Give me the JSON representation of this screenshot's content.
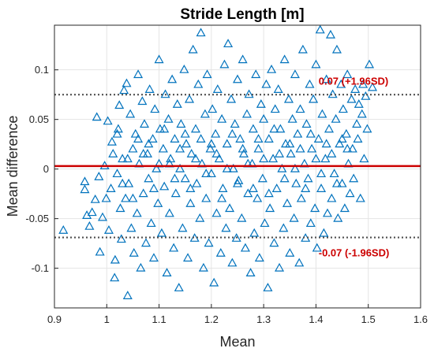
{
  "chart_data": {
    "type": "scatter",
    "title": "Stride Length [m]",
    "xlabel": "Mean",
    "ylabel": "Mean difference",
    "xlim": [
      0.9,
      1.6
    ],
    "ylim": [
      -0.14,
      0.145
    ],
    "xticks": [
      0.9,
      1.0,
      1.1,
      1.2,
      1.3,
      1.4,
      1.5,
      1.6
    ],
    "xtick_labels": [
      "0.9",
      "1",
      "1.1",
      "1.2",
      "1.3",
      "1.4",
      "1.5",
      "1.6"
    ],
    "yticks": [
      -0.1,
      -0.05,
      0,
      0.05,
      0.1
    ],
    "ytick_labels": [
      "-0.1",
      "-0.05",
      "0",
      "0.05",
      "0.1"
    ],
    "grid": true,
    "marker": "triangle",
    "marker_color": "#0072BD",
    "mean_line": {
      "y": 0.003,
      "color": "#CC0000"
    },
    "loa_lines": [
      {
        "y": 0.075,
        "color": "#505050",
        "style": "dotted"
      },
      {
        "y": -0.069,
        "color": "#505050",
        "style": "dotted"
      }
    ],
    "annotations": [
      {
        "text": "0.07 (+1.96SD)",
        "x": 1.405,
        "y": 0.085,
        "color": "#CC0000"
      },
      {
        "text": "-0.07 (-1.96SD)",
        "x": 1.405,
        "y": -0.088,
        "color": "#CC0000"
      }
    ],
    "series": [
      {
        "points": [
          [
            0.917,
            -0.062
          ],
          [
            0.958,
            -0.021
          ],
          [
            0.958,
            -0.013
          ],
          [
            0.962,
            -0.047
          ],
          [
            0.967,
            -0.058
          ],
          [
            0.972,
            -0.044
          ],
          [
            0.978,
            -0.031
          ],
          [
            0.981,
            0.052
          ],
          [
            0.985,
            -0.008
          ],
          [
            0.987,
            -0.084
          ],
          [
            0.992,
            -0.049
          ],
          [
            0.996,
            0.003
          ],
          [
            0.999,
            -0.03
          ],
          [
            1.002,
            0.048
          ],
          [
            1.004,
            -0.062
          ],
          [
            1.008,
            -0.02
          ],
          [
            1.01,
            0.027
          ],
          [
            1.012,
            0.015
          ],
          [
            1.015,
            -0.11
          ],
          [
            1.016,
            -0.092
          ],
          [
            1.02,
            -0.005
          ],
          [
            1.022,
            0.04
          ],
          [
            1.024,
            0.064
          ],
          [
            1.026,
            -0.04
          ],
          [
            1.028,
            -0.071
          ],
          [
            1.03,
            0.01
          ],
          [
            1.033,
            0.079
          ],
          [
            1.036,
            -0.03
          ],
          [
            1.038,
            0.086
          ],
          [
            1.04,
            -0.128
          ],
          [
            1.042,
            -0.015
          ],
          [
            1.045,
            0.055
          ],
          [
            1.047,
            -0.06
          ],
          [
            1.05,
            0.02
          ],
          [
            1.052,
            -0.085
          ],
          [
            1.055,
            0.035
          ],
          [
            1.058,
            -0.045
          ],
          [
            1.06,
            0.095
          ],
          [
            1.062,
            0.005
          ],
          [
            1.065,
            -0.1
          ],
          [
            1.068,
            0.068
          ],
          [
            1.07,
            -0.025
          ],
          [
            1.072,
            0.045
          ],
          [
            1.075,
            -0.075
          ],
          [
            1.078,
            0.015
          ],
          [
            1.08,
            -0.01
          ],
          [
            1.082,
            0.08
          ],
          [
            1.085,
            -0.055
          ],
          [
            1.088,
            0.03
          ],
          [
            1.09,
            -0.09
          ],
          [
            1.092,
            0.06
          ],
          [
            1.095,
            0.0
          ],
          [
            1.098,
            -0.035
          ],
          [
            1.1,
            0.11
          ],
          [
            1.102,
            0.04
          ],
          [
            1.105,
            -0.065
          ],
          [
            1.108,
            0.02
          ],
          [
            1.11,
            -0.018
          ],
          [
            1.112,
            0.075
          ],
          [
            1.115,
            -0.105
          ],
          [
            1.118,
            0.05
          ],
          [
            1.12,
            -0.045
          ],
          [
            1.122,
            0.01
          ],
          [
            1.125,
            0.09
          ],
          [
            1.128,
            -0.08
          ],
          [
            1.13,
            0.03
          ],
          [
            1.132,
            -0.025
          ],
          [
            1.135,
            0.065
          ],
          [
            1.138,
            -0.12
          ],
          [
            1.14,
            0.0
          ],
          [
            1.142,
            0.045
          ],
          [
            1.145,
            -0.06
          ],
          [
            1.148,
            0.1
          ],
          [
            1.15,
            -0.01
          ],
          [
            1.152,
            0.025
          ],
          [
            1.155,
            -0.09
          ],
          [
            1.158,
            0.07
          ],
          [
            1.16,
            -0.035
          ],
          [
            1.162,
            0.015
          ],
          [
            1.165,
            0.12
          ],
          [
            1.168,
            -0.07
          ],
          [
            1.17,
            0.04
          ],
          [
            1.172,
            -0.015
          ],
          [
            1.175,
            0.085
          ],
          [
            1.178,
            -0.05
          ],
          [
            1.18,
            0.137
          ],
          [
            1.182,
            0.005
          ],
          [
            1.185,
            -0.1
          ],
          [
            1.188,
            0.055
          ],
          [
            1.19,
            -0.03
          ],
          [
            1.192,
            0.095
          ],
          [
            1.195,
            -0.075
          ],
          [
            1.198,
            0.02
          ],
          [
            1.2,
            -0.005
          ],
          [
            1.202,
            0.06
          ],
          [
            1.205,
            -0.115
          ],
          [
            1.208,
            0.035
          ],
          [
            1.21,
            -0.045
          ],
          [
            1.212,
            0.08
          ],
          [
            1.215,
            0.01
          ],
          [
            1.218,
            -0.085
          ],
          [
            1.22,
            0.05
          ],
          [
            1.222,
            -0.02
          ],
          [
            1.225,
            0.105
          ],
          [
            1.228,
            -0.06
          ],
          [
            1.23,
            0.025
          ],
          [
            1.232,
            0.126
          ],
          [
            1.235,
            -0.04
          ],
          [
            1.238,
            0.07
          ],
          [
            1.24,
            -0.095
          ],
          [
            1.242,
            0.0
          ],
          [
            1.245,
            0.045
          ],
          [
            1.248,
            -0.07
          ],
          [
            1.25,
            0.09
          ],
          [
            1.252,
            -0.012
          ],
          [
            1.255,
            0.03
          ],
          [
            1.258,
            -0.05
          ],
          [
            1.26,
            0.11
          ],
          [
            1.262,
            0.015
          ],
          [
            1.265,
            -0.08
          ],
          [
            1.268,
            0.055
          ],
          [
            1.27,
            -0.025
          ],
          [
            1.272,
            0.075
          ],
          [
            1.275,
            -0.105
          ],
          [
            1.278,
            0.005
          ],
          [
            1.28,
            0.04
          ],
          [
            1.282,
            -0.065
          ],
          [
            1.285,
            0.095
          ],
          [
            1.288,
            -0.03
          ],
          [
            1.29,
            0.02
          ],
          [
            1.292,
            -0.09
          ],
          [
            1.295,
            0.065
          ],
          [
            1.298,
            -0.01
          ],
          [
            1.3,
            0.05
          ],
          [
            1.302,
            -0.055
          ],
          [
            1.305,
            0.085
          ],
          [
            1.308,
            -0.12
          ],
          [
            1.31,
            0.03
          ],
          [
            1.312,
            -0.04
          ],
          [
            1.315,
            0.1
          ],
          [
            1.318,
            0.01
          ],
          [
            1.32,
            -0.075
          ],
          [
            1.322,
            0.06
          ],
          [
            1.325,
            -0.02
          ],
          [
            1.328,
            0.08
          ],
          [
            1.33,
            -0.1
          ],
          [
            1.332,
            0.04
          ],
          [
            1.335,
            0.0
          ],
          [
            1.338,
            -0.06
          ],
          [
            1.34,
            0.11
          ],
          [
            1.342,
            0.025
          ],
          [
            1.345,
            -0.035
          ],
          [
            1.348,
            0.07
          ],
          [
            1.35,
            -0.085
          ],
          [
            1.352,
            0.015
          ],
          [
            1.355,
            0.05
          ],
          [
            1.358,
            -0.05
          ],
          [
            1.36,
            0.095
          ],
          [
            1.362,
            -0.015
          ],
          [
            1.365,
            0.035
          ],
          [
            1.368,
            -0.095
          ],
          [
            1.37,
            0.06
          ],
          [
            1.372,
            -0.03
          ],
          [
            1.375,
            0.12
          ],
          [
            1.378,
            0.005
          ],
          [
            1.38,
            -0.07
          ],
          [
            1.382,
            0.045
          ],
          [
            1.385,
            -0.01
          ],
          [
            1.388,
            0.085
          ],
          [
            1.39,
            -0.055
          ],
          [
            1.392,
            0.02
          ],
          [
            1.395,
            0.07
          ],
          [
            1.398,
            -0.04
          ],
          [
            1.4,
            0.105
          ],
          [
            1.402,
            -0.08
          ],
          [
            1.405,
            0.03
          ],
          [
            1.408,
            0.14
          ],
          [
            1.41,
            -0.02
          ],
          [
            1.412,
            0.055
          ],
          [
            1.415,
            -0.065
          ],
          [
            1.418,
            0.01
          ],
          [
            1.42,
            0.09
          ],
          [
            1.422,
            -0.045
          ],
          [
            1.425,
            0.04
          ],
          [
            1.428,
            0.135
          ],
          [
            1.43,
            -0.03
          ],
          [
            1.432,
            0.075
          ],
          [
            1.435,
            -0.005
          ],
          [
            1.438,
            0.05
          ],
          [
            1.44,
            0.12
          ],
          [
            1.442,
            -0.05
          ],
          [
            1.445,
            0.025
          ],
          [
            1.448,
            0.085
          ],
          [
            1.45,
            -0.015
          ],
          [
            1.452,
            0.06
          ],
          [
            1.455,
            -0.04
          ],
          [
            1.458,
            0.035
          ],
          [
            1.46,
            0.095
          ],
          [
            1.462,
            0.005
          ],
          [
            1.465,
            -0.025
          ],
          [
            1.468,
            0.07
          ],
          [
            1.47,
            0.02
          ],
          [
            1.472,
            -0.01
          ],
          [
            1.475,
            0.08
          ],
          [
            1.478,
            0.045
          ],
          [
            1.48,
            0.03
          ],
          [
            1.482,
            0.065
          ],
          [
            1.485,
            -0.03
          ],
          [
            1.488,
            0.055
          ],
          [
            1.49,
            0.085
          ],
          [
            1.492,
            0.01
          ],
          [
            1.495,
            0.073
          ],
          [
            1.498,
            0.04
          ],
          [
            1.502,
            0.105
          ],
          [
            1.508,
            0.082
          ],
          [
            1.12,
            0.005
          ],
          [
            1.13,
            -0.01
          ],
          [
            1.14,
            0.02
          ],
          [
            1.15,
            0.035
          ],
          [
            1.16,
            -0.02
          ],
          [
            1.17,
            0.01
          ],
          [
            1.18,
            0.03
          ],
          [
            1.19,
            -0.005
          ],
          [
            1.2,
            0.025
          ],
          [
            1.21,
            0.015
          ],
          [
            1.22,
            -0.03
          ],
          [
            1.23,
            0.0
          ],
          [
            1.24,
            0.035
          ],
          [
            1.25,
            -0.015
          ],
          [
            1.26,
            0.02
          ],
          [
            1.27,
            0.005
          ],
          [
            1.28,
            -0.02
          ],
          [
            1.29,
            0.03
          ],
          [
            1.3,
            0.01
          ],
          [
            1.31,
            -0.025
          ],
          [
            1.32,
            0.04
          ],
          [
            1.33,
            0.015
          ],
          [
            1.34,
            -0.01
          ],
          [
            1.35,
            0.025
          ],
          [
            1.36,
            0.0
          ],
          [
            1.37,
            0.02
          ],
          [
            1.38,
            -0.02
          ],
          [
            1.39,
            0.035
          ],
          [
            1.4,
            0.01
          ],
          [
            1.41,
            -0.005
          ],
          [
            1.42,
            0.025
          ],
          [
            1.43,
            0.015
          ],
          [
            1.44,
            -0.015
          ],
          [
            1.45,
            0.03
          ],
          [
            1.46,
            0.02
          ],
          [
            1.07,
            0.015
          ],
          [
            1.08,
            0.025
          ],
          [
            1.09,
            -0.02
          ],
          [
            1.1,
            0.005
          ],
          [
            1.11,
            0.04
          ],
          [
            1.04,
            0.01
          ],
          [
            1.05,
            -0.03
          ],
          [
            1.06,
            0.03
          ],
          [
            1.03,
            -0.015
          ],
          [
            1.02,
            0.035
          ]
        ]
      }
    ]
  }
}
